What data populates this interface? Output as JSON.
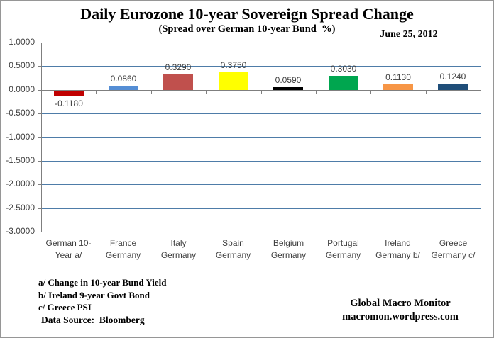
{
  "chart_data": {
    "type": "bar",
    "title": "Daily Eurozone 10-year Sovereign Spread Change",
    "subtitle": "(Spread over German 10-year Bund  %)",
    "date_label": "June 25, 2012",
    "categories": [
      {
        "line1": "German 10-",
        "line2": "Year a/"
      },
      {
        "line1": "France",
        "line2": "Germany"
      },
      {
        "line1": "Italy",
        "line2": "Germany"
      },
      {
        "line1": "Spain",
        "line2": "Germany"
      },
      {
        "line1": "Belgium",
        "line2": "Germany"
      },
      {
        "line1": "Portugal",
        "line2": "Germany"
      },
      {
        "line1": "Ireland",
        "line2": "Germany b/"
      },
      {
        "line1": "Greece",
        "line2": "Germany c/"
      }
    ],
    "values": [
      -0.118,
      0.086,
      0.329,
      0.375,
      0.059,
      0.303,
      0.113,
      0.124
    ],
    "value_labels": [
      "-0.1180",
      "0.0860",
      "0.3290",
      "0.3750",
      "0.0590",
      "0.3030",
      "0.1130",
      "0.1240"
    ],
    "bar_colors": [
      "#C00000",
      "#558ED5",
      "#C0504D",
      "#FFFF00",
      "#000000",
      "#00A64F",
      "#F79646",
      "#1F4E79"
    ],
    "ylim": [
      -3.0,
      1.0
    ],
    "ytick_values": [
      1.0,
      0.5,
      0.0,
      -0.5,
      -1.0,
      -1.5,
      -2.0,
      -2.5,
      -3.0
    ],
    "ytick_labels": [
      "1.0000",
      "0.5000",
      "0.0000",
      "-0.5000",
      "-1.0000",
      "-1.5000",
      "-2.0000",
      "-2.5000",
      "-3.0000"
    ],
    "grid": true,
    "legend": "none",
    "xlabel": "",
    "ylabel": "",
    "footnotes": [
      "a/ Change in 10-year Bund Yield",
      "b/ Ireland 9-year Govt Bond",
      "c/ Greece PSI"
    ],
    "data_source": "Data Source:  Bloomberg",
    "attribution": {
      "name": "Global Macro Monitor",
      "url": "macromon.wordpress.com"
    },
    "colors": {
      "gridline": "#4E7CA8",
      "axis": "#7F7F7F",
      "label_text": "#3F3F3F",
      "text": "#000000",
      "background": "#FFFFFF",
      "border": "#969696"
    }
  }
}
